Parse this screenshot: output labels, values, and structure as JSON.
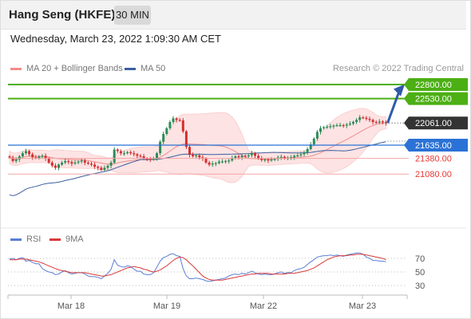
{
  "header": {
    "title": "Hang Seng (HKFE)",
    "timeframe": "30 MIN"
  },
  "datetime": "Wednesday, March 23, 2022 1:09:30 AM CET",
  "legend": {
    "ma20_label": "MA 20 + Bollinger Bands",
    "ma50_label": "MA 50",
    "credit": "Research © 2022 Trading Central"
  },
  "rsi_legend": {
    "rsi_label": "RSI",
    "ma9_label": "9MA"
  },
  "colors": {
    "candle_up": "#2e8b57",
    "candle_down": "#d32f2f",
    "bollinger_fill": "#fde3e3",
    "ma20": "#f08c8c",
    "ma50": "#3a5f9e",
    "resistance": "#4caf14",
    "support": "#2a72d6",
    "support_red": "#e53935",
    "arrow": "#2f5aa8",
    "current": "#333333",
    "rsi": "#5b7fd6",
    "rsi_ma": "#d93a3a"
  },
  "chart_data": [
    {
      "type": "candlestick",
      "title": "",
      "x_tick_labels": [
        "Mar 18",
        "Mar 19",
        "Mar 22",
        "Mar 23"
      ],
      "ylim": [
        20900,
        23000
      ],
      "levels": [
        {
          "value": 22800,
          "label": "22800.00",
          "kind": "resistance"
        },
        {
          "value": 22530,
          "label": "22530.00",
          "kind": "resistance"
        },
        {
          "value": 22061,
          "label": "22061.00",
          "kind": "current"
        },
        {
          "value": 21635,
          "label": "21635.00",
          "kind": "support"
        },
        {
          "value": 21380,
          "label": "21380.00",
          "kind": "support_minor"
        },
        {
          "value": 21080,
          "label": "21080.00",
          "kind": "support_minor"
        }
      ],
      "forecast_arrow": {
        "from": 22061,
        "to": 22760
      },
      "closes": [
        21400,
        21330,
        21360,
        21420,
        21480,
        21520,
        21460,
        21400,
        21390,
        21420,
        21430,
        21380,
        21300,
        21240,
        21200,
        21260,
        21300,
        21330,
        21310,
        21280,
        21300,
        21320,
        21340,
        21300,
        21280,
        21260,
        21220,
        21200,
        21160,
        21200,
        21240,
        21300,
        21550,
        21520,
        21480,
        21480,
        21500,
        21480,
        21460,
        21430,
        21420,
        21380,
        21370,
        21360,
        21370,
        21480,
        21700,
        21850,
        21960,
        22080,
        22150,
        22120,
        22110,
        21900,
        21600,
        21450,
        21420,
        21440,
        21400,
        21380,
        21300,
        21260,
        21280,
        21290,
        21320,
        21320,
        21330,
        21340,
        21390,
        21420,
        21400,
        21430,
        21420,
        21440,
        21480,
        21430,
        21380,
        21350,
        21360,
        21340,
        21360,
        21370,
        21400,
        21410,
        21380,
        21390,
        21400,
        21430,
        21440,
        21460,
        21500,
        21560,
        21650,
        21760,
        21890,
        21960,
        21980,
        21990,
        22000,
        22010,
        22020,
        22020,
        22010,
        22030,
        22050,
        22080,
        22120,
        22170,
        22160,
        22140,
        22120,
        22080,
        22070,
        22090,
        22075,
        22061
      ]
    },
    {
      "type": "line",
      "title": "",
      "ylim": [
        20,
        80
      ],
      "y_ticks": [
        70,
        50,
        30
      ],
      "series": [
        {
          "name": "RSI",
          "values": [
            69,
            70,
            68,
            70,
            71,
            66,
            67,
            64,
            62,
            62,
            55,
            52,
            50,
            49,
            46,
            47,
            50,
            52,
            49,
            47,
            48,
            49,
            49,
            47,
            44,
            43,
            43,
            42,
            40,
            44,
            48,
            54,
            68,
            60,
            58,
            57,
            59,
            58,
            54,
            51,
            51,
            47,
            46,
            46,
            49,
            57,
            66,
            71,
            73,
            76,
            77,
            74,
            73,
            55,
            44,
            40,
            40,
            41,
            40,
            39,
            37,
            36,
            37,
            38,
            39,
            40,
            41,
            44,
            46,
            47,
            46,
            48,
            47,
            49,
            51,
            49,
            47,
            46,
            47,
            46,
            46,
            47,
            49,
            50,
            48,
            49,
            49,
            52,
            54,
            55,
            57,
            61,
            65,
            68,
            72,
            73,
            74,
            74,
            75,
            74,
            75,
            74,
            73,
            75,
            76,
            77,
            78,
            78,
            76,
            72,
            70,
            67,
            67,
            66,
            66,
            65
          ]
        },
        {
          "name": "9MA",
          "values": [
            68,
            68,
            68,
            69,
            69,
            69,
            68,
            67,
            66,
            65,
            63,
            61,
            59,
            57,
            55,
            53,
            52,
            51,
            50,
            49,
            49,
            49,
            49,
            49,
            48,
            47,
            46,
            45,
            44,
            44,
            45,
            46,
            48,
            50,
            52,
            54,
            56,
            57,
            58,
            57,
            56,
            54,
            53,
            51,
            50,
            51,
            53,
            56,
            59,
            63,
            67,
            70,
            72,
            71,
            68,
            63,
            59,
            54,
            49,
            44,
            41,
            39,
            38,
            38,
            38,
            38,
            39,
            40,
            41,
            42,
            43,
            44,
            45,
            46,
            47,
            47,
            48,
            48,
            48,
            48,
            47,
            47,
            47,
            47,
            47,
            48,
            48,
            48,
            49,
            50,
            51,
            52,
            54,
            56,
            59,
            62,
            65,
            68,
            70,
            72,
            73,
            74,
            74,
            74,
            75,
            75,
            76,
            76,
            76,
            75,
            74,
            73,
            72,
            71,
            70,
            68
          ]
        }
      ]
    }
  ]
}
